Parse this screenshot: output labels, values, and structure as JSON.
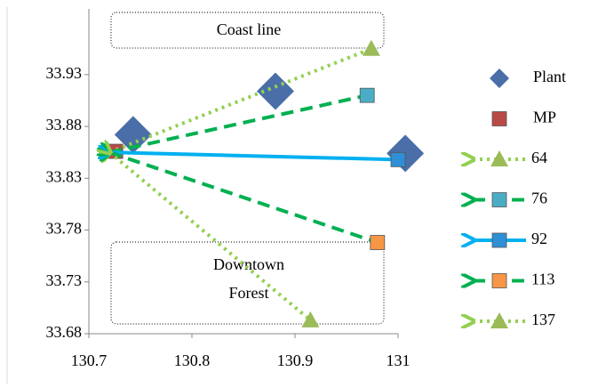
{
  "chart_data": {
    "type": "scatter",
    "xlim": [
      130.7,
      131
    ],
    "xticks": [
      130.7,
      130.8,
      130.9,
      131
    ],
    "ylim": [
      33.68,
      33.99
    ],
    "yticks": [
      33.68,
      33.73,
      33.78,
      33.83,
      33.88,
      33.93
    ],
    "annotations": [
      "Coast line",
      "Downtown",
      "Forest"
    ],
    "series": [
      {
        "name": "Plant",
        "color": "#4a6ea8",
        "marker": "diamond",
        "line": "none",
        "x": [
          130.743,
          130.881,
          131.007
        ],
        "values": [
          33.872,
          33.914,
          33.854
        ]
      },
      {
        "name": "MP",
        "color": "#b84a46",
        "marker": "square",
        "line": "none",
        "x": [
          130.726
        ],
        "values": [
          33.856
        ]
      },
      {
        "name": "64",
        "color": "#92d050",
        "marker": "triangle",
        "markerColor": "#9bbb59",
        "line": "dotted",
        "x": [
          130.72,
          130.974
        ],
        "values": [
          33.855,
          33.955
        ]
      },
      {
        "name": "76",
        "color": "#00b050",
        "marker": "square",
        "markerColor": "#4bacc6",
        "line": "dashed",
        "x": [
          130.72,
          130.97
        ],
        "values": [
          33.855,
          33.91
        ]
      },
      {
        "name": "92",
        "color": "#00b0f0",
        "marker": "square",
        "markerColor": "#2e8fd6",
        "line": "solid",
        "x": [
          130.72,
          131.0
        ],
        "values": [
          33.855,
          33.848
        ]
      },
      {
        "name": "113",
        "color": "#00b050",
        "marker": "square",
        "markerColor": "#f79646",
        "line": "dashed",
        "x": [
          130.72,
          130.98
        ],
        "values": [
          33.855,
          33.768
        ]
      },
      {
        "name": "137",
        "color": "#92d050",
        "marker": "triangle",
        "markerColor": "#9bbb59",
        "line": "dotted",
        "x": [
          130.72,
          130.915
        ],
        "values": [
          33.855,
          33.693
        ]
      }
    ]
  }
}
